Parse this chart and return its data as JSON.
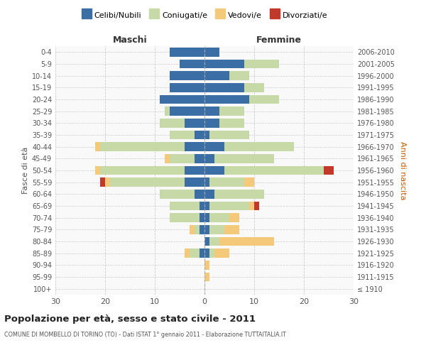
{
  "age_groups": [
    "100+",
    "95-99",
    "90-94",
    "85-89",
    "80-84",
    "75-79",
    "70-74",
    "65-69",
    "60-64",
    "55-59",
    "50-54",
    "45-49",
    "40-44",
    "35-39",
    "30-34",
    "25-29",
    "20-24",
    "15-19",
    "10-14",
    "5-9",
    "0-4"
  ],
  "birth_years": [
    "≤ 1910",
    "1911-1915",
    "1916-1920",
    "1921-1925",
    "1926-1930",
    "1931-1935",
    "1936-1940",
    "1941-1945",
    "1946-1950",
    "1951-1955",
    "1956-1960",
    "1961-1965",
    "1966-1970",
    "1971-1975",
    "1976-1980",
    "1981-1985",
    "1986-1990",
    "1991-1995",
    "1996-2000",
    "2001-2005",
    "2006-2010"
  ],
  "maschi": {
    "celibi": [
      0,
      0,
      0,
      1,
      0,
      1,
      1,
      1,
      2,
      4,
      4,
      2,
      4,
      2,
      4,
      7,
      9,
      7,
      7,
      5,
      7
    ],
    "coniugati": [
      0,
      0,
      0,
      2,
      0,
      1,
      6,
      6,
      7,
      15,
      17,
      5,
      17,
      5,
      5,
      1,
      0,
      0,
      0,
      0,
      0
    ],
    "vedovi": [
      0,
      0,
      0,
      1,
      0,
      1,
      0,
      0,
      0,
      1,
      1,
      1,
      1,
      0,
      0,
      0,
      0,
      0,
      0,
      0,
      0
    ],
    "divorziati": [
      0,
      0,
      0,
      0,
      0,
      0,
      0,
      0,
      0,
      1,
      0,
      0,
      0,
      0,
      0,
      0,
      0,
      0,
      0,
      0,
      0
    ]
  },
  "femmine": {
    "nubili": [
      0,
      0,
      0,
      1,
      1,
      1,
      1,
      1,
      2,
      1,
      4,
      2,
      4,
      1,
      3,
      3,
      9,
      8,
      5,
      8,
      3
    ],
    "coniugate": [
      0,
      0,
      0,
      1,
      2,
      3,
      4,
      8,
      10,
      7,
      20,
      12,
      14,
      8,
      5,
      5,
      6,
      4,
      4,
      7,
      0
    ],
    "vedove": [
      0,
      1,
      1,
      3,
      11,
      3,
      2,
      1,
      0,
      2,
      0,
      0,
      0,
      0,
      0,
      0,
      0,
      0,
      0,
      0,
      0
    ],
    "divorziate": [
      0,
      0,
      0,
      0,
      0,
      0,
      0,
      1,
      0,
      0,
      2,
      0,
      0,
      0,
      0,
      0,
      0,
      0,
      0,
      0,
      0
    ]
  },
  "colors": {
    "celibi": "#3A6EA5",
    "coniugati": "#C8D9A8",
    "vedovi": "#F5C97A",
    "divorziati": "#C0392B"
  },
  "xlim": 30,
  "title": "Popolazione per età, sesso e stato civile - 2011",
  "subtitle": "COMUNE DI MOMBELLO DI TORINO (TO) - Dati ISTAT 1° gennaio 2011 - Elaborazione TUTTAITALIA.IT",
  "ylabel_left": "Fasce di età",
  "ylabel_right": "Anni di nascita",
  "xlabel_left": "Maschi",
  "xlabel_right": "Femmine",
  "legend_labels": [
    "Celibi/Nubili",
    "Coniugati/e",
    "Vedovi/e",
    "Divorziati/e"
  ],
  "bg_color": "#FFFFFF",
  "grid_color": "#CCCCCC",
  "face_color": "#F9F9F9"
}
